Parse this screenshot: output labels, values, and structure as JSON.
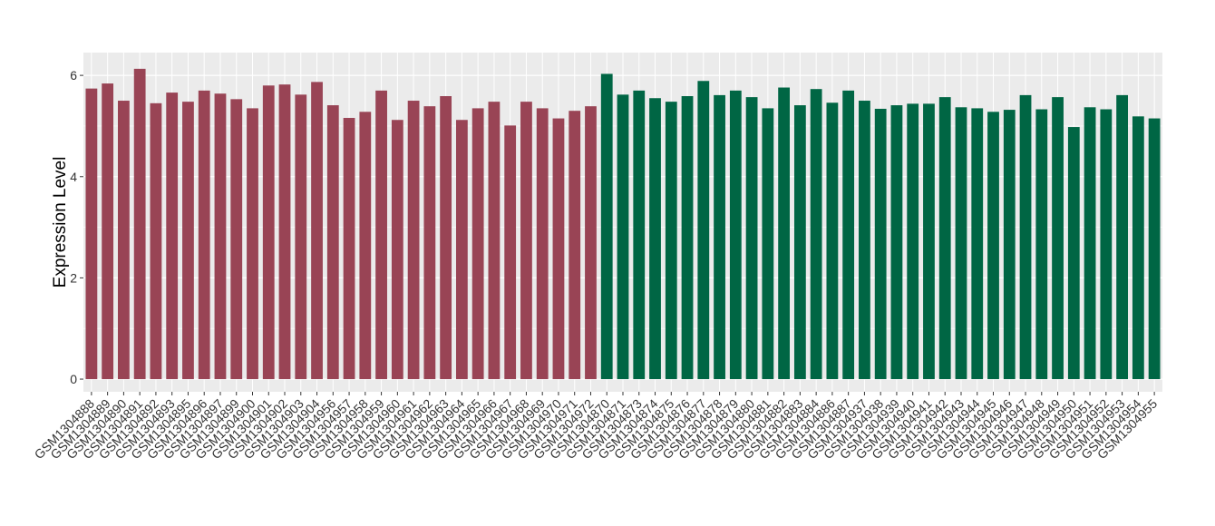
{
  "chart_data": {
    "type": "bar",
    "title": "",
    "xlabel": "",
    "ylabel": "Expression Level",
    "ylim": [
      -0.25,
      6.45
    ],
    "yticks": [
      0,
      2,
      4,
      6
    ],
    "grid": true,
    "legend": "none",
    "panel_background": "#ebebeb",
    "grid_color": "#ffffff",
    "categories": [
      "GSM1304888",
      "GSM1304889",
      "GSM1304890",
      "GSM1304891",
      "GSM1304892",
      "GSM1304893",
      "GSM1304895",
      "GSM1304896",
      "GSM1304897",
      "GSM1304899",
      "GSM1304900",
      "GSM1304901",
      "GSM1304902",
      "GSM1304903",
      "GSM1304904",
      "GSM1304956",
      "GSM1304957",
      "GSM1304958",
      "GSM1304959",
      "GSM1304960",
      "GSM1304961",
      "GSM1304962",
      "GSM1304963",
      "GSM1304964",
      "GSM1304965",
      "GSM1304966",
      "GSM1304967",
      "GSM1304968",
      "GSM1304969",
      "GSM1304970",
      "GSM1304971",
      "GSM1304972",
      "GSM1304870",
      "GSM1304871",
      "GSM1304873",
      "GSM1304874",
      "GSM1304875",
      "GSM1304876",
      "GSM1304877",
      "GSM1304878",
      "GSM1304879",
      "GSM1304880",
      "GSM1304881",
      "GSM1304882",
      "GSM1304883",
      "GSM1304884",
      "GSM1304886",
      "GSM1304887",
      "GSM1304937",
      "GSM1304938",
      "GSM1304939",
      "GSM1304940",
      "GSM1304941",
      "GSM1304942",
      "GSM1304943",
      "GSM1304944",
      "GSM1304945",
      "GSM1304946",
      "GSM1304947",
      "GSM1304948",
      "GSM1304949",
      "GSM1304950",
      "GSM1304951",
      "GSM1304952",
      "GSM1304953",
      "GSM1304954",
      "GSM1304955"
    ],
    "values": [
      5.74,
      5.84,
      5.5,
      6.13,
      5.45,
      5.66,
      5.48,
      5.7,
      5.64,
      5.53,
      5.35,
      5.8,
      5.82,
      5.62,
      5.87,
      5.41,
      5.16,
      5.28,
      5.7,
      5.12,
      5.5,
      5.39,
      5.59,
      5.12,
      5.35,
      5.48,
      5.01,
      5.48,
      5.35,
      5.15,
      5.3,
      5.39,
      6.03,
      5.62,
      5.7,
      5.55,
      5.48,
      5.59,
      5.89,
      5.61,
      5.7,
      5.57,
      5.35,
      5.76,
      5.41,
      5.73,
      5.46,
      5.7,
      5.5,
      5.34,
      5.41,
      5.44,
      5.44,
      5.57,
      5.37,
      5.35,
      5.28,
      5.32,
      5.61,
      5.33,
      5.57,
      4.98,
      5.37,
      5.33,
      5.61,
      5.19,
      5.15
    ],
    "bar_colors": [
      "#994455",
      "#994455",
      "#994455",
      "#994455",
      "#994455",
      "#994455",
      "#994455",
      "#994455",
      "#994455",
      "#994455",
      "#994455",
      "#994455",
      "#994455",
      "#994455",
      "#994455",
      "#994455",
      "#994455",
      "#994455",
      "#994455",
      "#994455",
      "#994455",
      "#994455",
      "#994455",
      "#994455",
      "#994455",
      "#994455",
      "#994455",
      "#994455",
      "#994455",
      "#994455",
      "#994455",
      "#994455",
      "#006644",
      "#006644",
      "#006644",
      "#006644",
      "#006644",
      "#006644",
      "#006644",
      "#006644",
      "#006644",
      "#006644",
      "#006644",
      "#006644",
      "#006644",
      "#006644",
      "#006644",
      "#006644",
      "#006644",
      "#006644",
      "#006644",
      "#006644",
      "#006644",
      "#006644",
      "#006644",
      "#006644",
      "#006644",
      "#006644",
      "#006644",
      "#006644",
      "#006644",
      "#006644",
      "#006644",
      "#006644",
      "#006644",
      "#006644",
      "#006644"
    ]
  }
}
